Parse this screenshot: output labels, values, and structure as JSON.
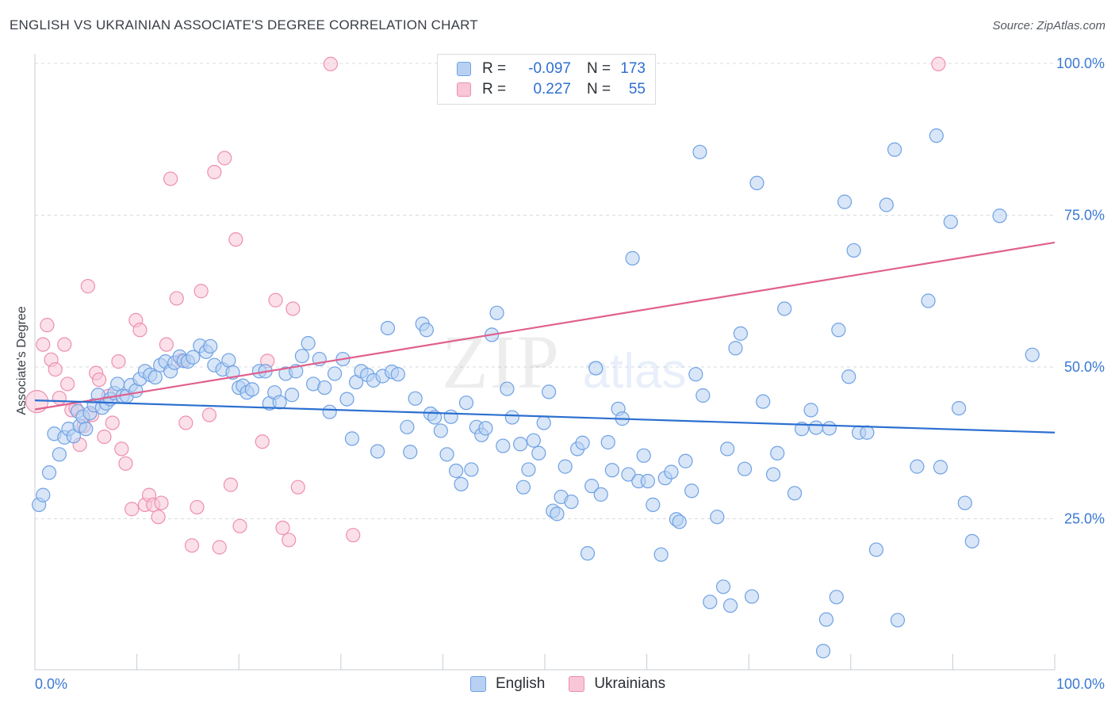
{
  "title": "ENGLISH VS UKRAINIAN ASSOCIATE'S DEGREE CORRELATION CHART",
  "source": "Source: ZipAtlas.com",
  "watermark": {
    "zip": "ZIP",
    "atlas": "atlas"
  },
  "colors": {
    "english": "#6fa1e4",
    "english_fill": "#b8d1f3",
    "english_line": "#2b6fd0",
    "ukrainian": "#ee8fb0",
    "ukrainian_fill": "#f8c6d7",
    "ukrainian_line": "#e0608e",
    "tick_text": "#3a78d4",
    "grid": "#d7dbe0"
  },
  "legend_top": {
    "english": {
      "r_label": "R =",
      "r_value": "-0.097",
      "n_label": "N =",
      "n_value": "173"
    },
    "ukrainian": {
      "r_label": "R =",
      "r_value": "0.227",
      "n_label": "N =",
      "n_value": "55"
    }
  },
  "legend_bottom": {
    "english": "English",
    "ukrainian": "Ukrainians"
  },
  "chart_data": {
    "type": "scatter",
    "title": "ENGLISH VS UKRAINIAN ASSOCIATE'S DEGREE CORRELATION CHART",
    "xlabel": "",
    "ylabel": "Associate's Degree",
    "xlim": [
      0,
      100
    ],
    "ylim": [
      0,
      100
    ],
    "x_tick_labels": {
      "left": "0.0%",
      "right": "100.0%"
    },
    "y_ticks": [
      {
        "value": 25,
        "label": "25.0%"
      },
      {
        "value": 50,
        "label": "50.0%"
      },
      {
        "value": 75,
        "label": "75.0%"
      },
      {
        "value": 100,
        "label": "100.0%"
      }
    ],
    "grid": true,
    "legend": "top-center",
    "series": [
      {
        "name": "English",
        "trend": {
          "x": [
            0,
            100
          ],
          "y": [
            44.5,
            39.2
          ]
        },
        "points": [
          [
            0.4,
            27.3
          ],
          [
            0.8,
            28.9
          ],
          [
            1.4,
            32.6
          ],
          [
            1.9,
            39.0
          ],
          [
            2.4,
            35.6
          ],
          [
            2.9,
            38.4
          ],
          [
            3.3,
            39.8
          ],
          [
            3.8,
            38.6
          ],
          [
            4.2,
            42.7
          ],
          [
            4.4,
            40.3
          ],
          [
            4.7,
            41.8
          ],
          [
            5.0,
            39.8
          ],
          [
            5.4,
            42.4
          ],
          [
            5.8,
            43.7
          ],
          [
            6.2,
            45.4
          ],
          [
            6.6,
            43.3
          ],
          [
            7.0,
            44.0
          ],
          [
            7.4,
            44.7
          ],
          [
            7.8,
            45.7
          ],
          [
            8.1,
            47.2
          ],
          [
            8.6,
            45.2
          ],
          [
            9.0,
            45.2
          ],
          [
            9.4,
            47.0
          ],
          [
            9.9,
            46.1
          ],
          [
            10.3,
            48.0
          ],
          [
            10.8,
            49.3
          ],
          [
            11.3,
            48.7
          ],
          [
            11.8,
            48.3
          ],
          [
            12.3,
            50.3
          ],
          [
            12.8,
            50.9
          ],
          [
            13.3,
            49.3
          ],
          [
            13.7,
            50.7
          ],
          [
            14.2,
            51.7
          ],
          [
            14.6,
            51.0
          ],
          [
            15.0,
            50.9
          ],
          [
            15.5,
            51.6
          ],
          [
            16.2,
            53.5
          ],
          [
            16.8,
            52.5
          ],
          [
            17.2,
            53.4
          ],
          [
            17.6,
            50.3
          ],
          [
            18.4,
            49.6
          ],
          [
            19.0,
            51.1
          ],
          [
            19.4,
            49.1
          ],
          [
            20.0,
            46.6
          ],
          [
            20.4,
            46.9
          ],
          [
            20.8,
            45.8
          ],
          [
            21.3,
            46.3
          ],
          [
            22.0,
            49.3
          ],
          [
            22.6,
            49.3
          ],
          [
            23.0,
            44.0
          ],
          [
            23.5,
            45.8
          ],
          [
            24.0,
            44.2
          ],
          [
            24.6,
            48.9
          ],
          [
            25.2,
            45.4
          ],
          [
            25.6,
            49.3
          ],
          [
            26.2,
            51.8
          ],
          [
            26.8,
            53.9
          ],
          [
            27.3,
            47.2
          ],
          [
            27.9,
            51.3
          ],
          [
            28.4,
            46.6
          ],
          [
            28.9,
            42.6
          ],
          [
            29.4,
            48.9
          ],
          [
            30.2,
            51.3
          ],
          [
            30.6,
            44.7
          ],
          [
            31.1,
            38.2
          ],
          [
            31.5,
            47.5
          ],
          [
            32.0,
            49.3
          ],
          [
            32.6,
            48.7
          ],
          [
            33.2,
            47.8
          ],
          [
            33.6,
            36.1
          ],
          [
            34.1,
            48.5
          ],
          [
            34.6,
            56.4
          ],
          [
            35.0,
            49.2
          ],
          [
            35.6,
            48.8
          ],
          [
            36.5,
            40.1
          ],
          [
            36.8,
            36.0
          ],
          [
            37.3,
            44.8
          ],
          [
            38.0,
            57.1
          ],
          [
            38.4,
            56.1
          ],
          [
            38.8,
            42.3
          ],
          [
            39.2,
            41.7
          ],
          [
            39.8,
            39.5
          ],
          [
            40.4,
            35.6
          ],
          [
            40.8,
            41.8
          ],
          [
            41.3,
            32.9
          ],
          [
            41.8,
            30.7
          ],
          [
            42.3,
            44.1
          ],
          [
            42.8,
            33.1
          ],
          [
            43.3,
            40.1
          ],
          [
            43.8,
            38.8
          ],
          [
            44.2,
            39.9
          ],
          [
            44.8,
            55.3
          ],
          [
            45.3,
            58.9
          ],
          [
            45.9,
            37.0
          ],
          [
            46.3,
            46.4
          ],
          [
            46.8,
            41.7
          ],
          [
            47.6,
            37.3
          ],
          [
            47.9,
            30.2
          ],
          [
            48.4,
            33.1
          ],
          [
            48.9,
            37.9
          ],
          [
            49.4,
            35.8
          ],
          [
            49.9,
            40.8
          ],
          [
            50.4,
            45.9
          ],
          [
            50.8,
            26.3
          ],
          [
            51.2,
            25.8
          ],
          [
            51.6,
            28.6
          ],
          [
            52.0,
            33.6
          ],
          [
            52.6,
            27.8
          ],
          [
            53.2,
            36.5
          ],
          [
            53.7,
            37.5
          ],
          [
            54.2,
            19.3
          ],
          [
            54.6,
            30.4
          ],
          [
            55.0,
            49.8
          ],
          [
            55.5,
            29.0
          ],
          [
            56.2,
            37.6
          ],
          [
            56.6,
            33.0
          ],
          [
            57.2,
            43.1
          ],
          [
            57.6,
            41.5
          ],
          [
            58.2,
            32.3
          ],
          [
            58.6,
            67.9
          ],
          [
            59.2,
            31.2
          ],
          [
            59.7,
            35.4
          ],
          [
            60.1,
            31.2
          ],
          [
            60.6,
            27.3
          ],
          [
            61.4,
            19.1
          ],
          [
            61.8,
            31.7
          ],
          [
            62.4,
            32.7
          ],
          [
            62.9,
            24.9
          ],
          [
            63.2,
            24.5
          ],
          [
            63.8,
            34.5
          ],
          [
            64.4,
            29.6
          ],
          [
            64.8,
            48.8
          ],
          [
            65.2,
            85.4
          ],
          [
            65.5,
            45.3
          ],
          [
            66.2,
            11.3
          ],
          [
            66.9,
            25.3
          ],
          [
            67.5,
            13.8
          ],
          [
            67.9,
            36.5
          ],
          [
            68.2,
            10.7
          ],
          [
            68.7,
            53.1
          ],
          [
            69.2,
            55.5
          ],
          [
            69.6,
            33.2
          ],
          [
            70.3,
            12.2
          ],
          [
            70.8,
            80.3
          ],
          [
            71.4,
            44.3
          ],
          [
            72.4,
            32.3
          ],
          [
            72.8,
            35.8
          ],
          [
            73.5,
            59.6
          ],
          [
            74.5,
            29.2
          ],
          [
            75.2,
            39.8
          ],
          [
            76.1,
            42.9
          ],
          [
            76.6,
            40.0
          ],
          [
            77.3,
            3.2
          ],
          [
            77.6,
            8.4
          ],
          [
            77.9,
            39.9
          ],
          [
            78.6,
            12.1
          ],
          [
            78.8,
            56.1
          ],
          [
            79.4,
            77.2
          ],
          [
            79.8,
            48.4
          ],
          [
            80.3,
            69.2
          ],
          [
            80.8,
            39.2
          ],
          [
            81.6,
            39.2
          ],
          [
            82.5,
            19.9
          ],
          [
            83.5,
            76.7
          ],
          [
            84.3,
            85.8
          ],
          [
            84.6,
            8.3
          ],
          [
            86.5,
            33.6
          ],
          [
            87.6,
            60.9
          ],
          [
            88.4,
            88.1
          ],
          [
            88.8,
            33.5
          ],
          [
            89.8,
            73.9
          ],
          [
            90.6,
            43.2
          ],
          [
            91.2,
            27.6
          ],
          [
            91.9,
            21.3
          ],
          [
            94.6,
            74.9
          ],
          [
            97.8,
            52.0
          ]
        ]
      },
      {
        "name": "Ukrainians",
        "trend": {
          "x": [
            0,
            100
          ],
          "y": [
            43.0,
            70.5
          ]
        },
        "points": [
          [
            0.2,
            44.3
          ],
          [
            0.8,
            53.7
          ],
          [
            1.2,
            56.9
          ],
          [
            1.6,
            51.2
          ],
          [
            2.0,
            49.6
          ],
          [
            2.4,
            44.9
          ],
          [
            2.9,
            53.7
          ],
          [
            3.2,
            47.2
          ],
          [
            3.6,
            42.9
          ],
          [
            4.0,
            43.2
          ],
          [
            4.4,
            37.2
          ],
          [
            4.8,
            40.3
          ],
          [
            5.2,
            63.3
          ],
          [
            5.6,
            42.1
          ],
          [
            6.0,
            49.0
          ],
          [
            6.3,
            47.9
          ],
          [
            6.8,
            38.5
          ],
          [
            7.2,
            45.2
          ],
          [
            7.6,
            40.8
          ],
          [
            8.2,
            50.9
          ],
          [
            8.5,
            36.5
          ],
          [
            8.9,
            34.1
          ],
          [
            9.5,
            26.6
          ],
          [
            9.9,
            57.7
          ],
          [
            10.3,
            56.1
          ],
          [
            10.8,
            27.3
          ],
          [
            11.2,
            28.9
          ],
          [
            11.6,
            27.3
          ],
          [
            12.1,
            25.3
          ],
          [
            12.4,
            27.6
          ],
          [
            12.9,
            53.7
          ],
          [
            13.3,
            81.0
          ],
          [
            13.9,
            61.3
          ],
          [
            14.4,
            51.1
          ],
          [
            14.8,
            40.8
          ],
          [
            15.4,
            20.6
          ],
          [
            15.9,
            26.9
          ],
          [
            16.3,
            62.5
          ],
          [
            17.1,
            42.1
          ],
          [
            17.6,
            82.1
          ],
          [
            18.1,
            20.3
          ],
          [
            18.6,
            84.4
          ],
          [
            19.2,
            30.6
          ],
          [
            19.7,
            71.0
          ],
          [
            20.1,
            23.8
          ],
          [
            22.3,
            37.7
          ],
          [
            22.8,
            51.0
          ],
          [
            23.6,
            61.0
          ],
          [
            24.3,
            23.5
          ],
          [
            24.9,
            21.5
          ],
          [
            25.3,
            59.6
          ],
          [
            25.8,
            30.2
          ],
          [
            29.0,
            99.9
          ],
          [
            31.2,
            22.3
          ],
          [
            88.6,
            99.9
          ]
        ]
      }
    ]
  }
}
